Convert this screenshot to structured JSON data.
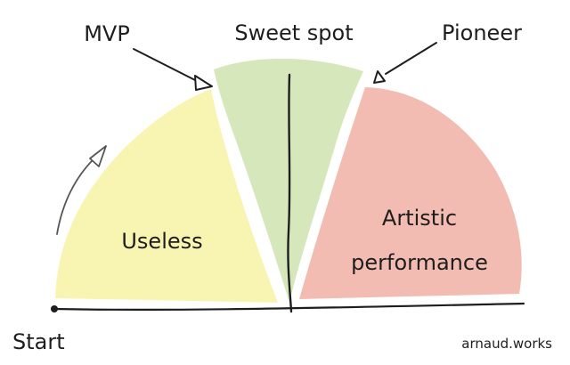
{
  "diagram": {
    "segments": [
      {
        "label": "Useless",
        "color": "#f8f5b3"
      },
      {
        "label": "Sweet spot",
        "color": "#d6e8bb"
      },
      {
        "label": "Artistic performance",
        "label_lines": [
          "Artistic",
          "performance"
        ],
        "color": "#f2bcb2"
      }
    ],
    "annotations": {
      "mvp": "MVP",
      "pioneer": "Pioneer",
      "start": "Start"
    },
    "credit": "arnaud.works",
    "ink_color": "#1e1e1e"
  }
}
